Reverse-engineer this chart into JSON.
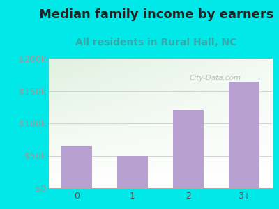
{
  "title": "Median family income by earners",
  "subtitle": "All residents in Rural Hall, NC",
  "categories": [
    "0",
    "1",
    "2",
    "3+"
  ],
  "values": [
    65000,
    50000,
    120000,
    165000
  ],
  "bar_color": "#b8a0d0",
  "title_color": "#222222",
  "subtitle_color": "#33aaaa",
  "ytick_color": "#999999",
  "xtick_color": "#555555",
  "outer_bg": "#00e8e8",
  "plot_bg_topleft": "#d8edd8",
  "plot_bg_bottomright": "#f8fff8",
  "ylim": [
    0,
    200000
  ],
  "yticks": [
    0,
    50000,
    100000,
    150000,
    200000
  ],
  "ytick_labels": [
    "$0",
    "$50k",
    "$100k",
    "$150k",
    "$200k"
  ],
  "watermark": "City-Data.com",
  "title_fontsize": 13,
  "subtitle_fontsize": 10,
  "tick_fontsize": 9,
  "grid_color": "#cccccc"
}
